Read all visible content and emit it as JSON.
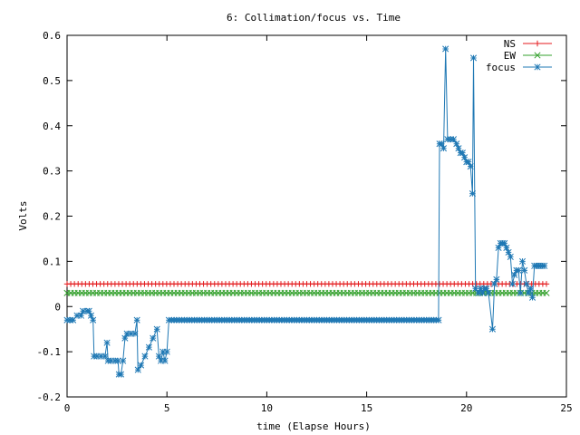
{
  "chart_data": {
    "type": "line",
    "title": "6: Collimation/focus vs. Time",
    "xlabel": "time (Elapse Hours)",
    "ylabel": "Volts",
    "xlim": [
      0,
      25
    ],
    "ylim": [
      -0.2,
      0.6
    ],
    "x_ticks": [
      0,
      5,
      10,
      15,
      20,
      25
    ],
    "x_tick_labels": [
      "0",
      "5",
      "10",
      "15",
      "20",
      "25"
    ],
    "y_ticks": [
      -0.2,
      -0.1,
      0,
      0.1,
      0.2,
      0.3,
      0.4,
      0.5,
      0.6
    ],
    "y_tick_labels": [
      "-0.2",
      "-0.1",
      "0",
      "0.1",
      "0.2",
      "0.3",
      "0.4",
      "0.5",
      "0.6"
    ],
    "grid": false,
    "legend_position": "top-right",
    "series": [
      {
        "name": "NS",
        "color": "#e41a1c",
        "marker": "plus",
        "points": [
          [
            0,
            0.05
          ],
          [
            24,
            0.05
          ]
        ]
      },
      {
        "name": "EW",
        "color": "#33a02c",
        "marker": "cross",
        "points": [
          [
            0,
            0.03
          ],
          [
            24,
            0.03
          ]
        ]
      },
      {
        "name": "focus",
        "color": "#1f78b4",
        "marker": "star",
        "points": [
          [
            0.0,
            -0.03
          ],
          [
            0.3,
            -0.03
          ],
          [
            0.5,
            -0.02
          ],
          [
            0.7,
            -0.02
          ],
          [
            0.8,
            -0.01
          ],
          [
            1.0,
            -0.01
          ],
          [
            1.1,
            -0.01
          ],
          [
            1.2,
            -0.02
          ],
          [
            1.3,
            -0.03
          ],
          [
            1.35,
            -0.11
          ],
          [
            1.5,
            -0.11
          ],
          [
            1.7,
            -0.11
          ],
          [
            1.9,
            -0.11
          ],
          [
            2.0,
            -0.08
          ],
          [
            2.05,
            -0.12
          ],
          [
            2.2,
            -0.12
          ],
          [
            2.4,
            -0.12
          ],
          [
            2.55,
            -0.12
          ],
          [
            2.6,
            -0.15
          ],
          [
            2.7,
            -0.15
          ],
          [
            2.8,
            -0.12
          ],
          [
            2.9,
            -0.07
          ],
          [
            3.0,
            -0.06
          ],
          [
            3.2,
            -0.06
          ],
          [
            3.4,
            -0.06
          ],
          [
            3.5,
            -0.03
          ],
          [
            3.55,
            -0.14
          ],
          [
            3.7,
            -0.13
          ],
          [
            3.9,
            -0.11
          ],
          [
            4.1,
            -0.09
          ],
          [
            4.3,
            -0.07
          ],
          [
            4.5,
            -0.05
          ],
          [
            4.6,
            -0.11
          ],
          [
            4.7,
            -0.12
          ],
          [
            4.8,
            -0.1
          ],
          [
            4.9,
            -0.12
          ],
          [
            5.0,
            -0.1
          ],
          [
            5.1,
            -0.03
          ],
          [
            6.0,
            -0.03
          ],
          [
            8.0,
            -0.03
          ],
          [
            10.0,
            -0.03
          ],
          [
            12.0,
            -0.03
          ],
          [
            14.0,
            -0.03
          ],
          [
            16.0,
            -0.03
          ],
          [
            18.0,
            -0.03
          ],
          [
            18.6,
            -0.03
          ],
          [
            18.65,
            0.36
          ],
          [
            18.75,
            0.36
          ],
          [
            18.85,
            0.35
          ],
          [
            18.95,
            0.57
          ],
          [
            19.05,
            0.37
          ],
          [
            19.2,
            0.37
          ],
          [
            19.35,
            0.37
          ],
          [
            19.5,
            0.36
          ],
          [
            19.6,
            0.35
          ],
          [
            19.7,
            0.34
          ],
          [
            19.8,
            0.34
          ],
          [
            19.9,
            0.33
          ],
          [
            20.0,
            0.32
          ],
          [
            20.1,
            0.32
          ],
          [
            20.2,
            0.31
          ],
          [
            20.3,
            0.25
          ],
          [
            20.35,
            0.55
          ],
          [
            20.45,
            0.04
          ],
          [
            20.6,
            0.03
          ],
          [
            20.7,
            0.04
          ],
          [
            20.8,
            0.03
          ],
          [
            20.9,
            0.04
          ],
          [
            21.0,
            0.04
          ],
          [
            21.1,
            0.03
          ],
          [
            21.3,
            -0.05
          ],
          [
            21.4,
            0.05
          ],
          [
            21.5,
            0.06
          ],
          [
            21.6,
            0.13
          ],
          [
            21.7,
            0.14
          ],
          [
            21.8,
            0.14
          ],
          [
            21.9,
            0.14
          ],
          [
            22.0,
            0.13
          ],
          [
            22.1,
            0.12
          ],
          [
            22.2,
            0.11
          ],
          [
            22.3,
            0.05
          ],
          [
            22.4,
            0.07
          ],
          [
            22.5,
            0.08
          ],
          [
            22.6,
            0.08
          ],
          [
            22.7,
            0.03
          ],
          [
            22.8,
            0.1
          ],
          [
            22.9,
            0.08
          ],
          [
            23.0,
            0.05
          ],
          [
            23.1,
            0.03
          ],
          [
            23.2,
            0.04
          ],
          [
            23.3,
            0.02
          ],
          [
            23.4,
            0.09
          ],
          [
            23.5,
            0.09
          ],
          [
            23.6,
            0.09
          ],
          [
            23.7,
            0.09
          ],
          [
            23.8,
            0.09
          ],
          [
            23.9,
            0.09
          ]
        ]
      }
    ]
  }
}
